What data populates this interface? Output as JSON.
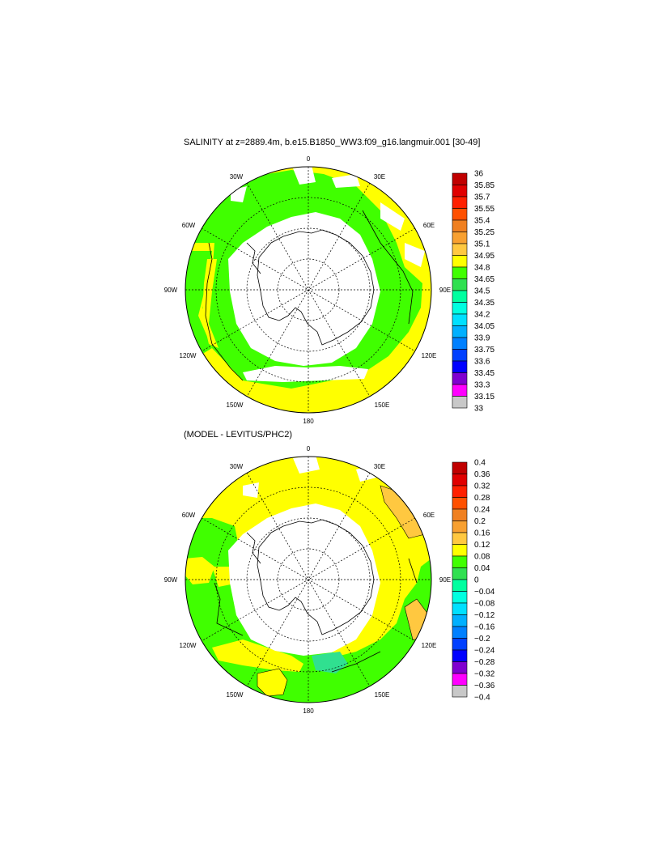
{
  "panels": [
    {
      "title": "SALINITY at z=2889.4m, b.e15.B1850_WW3.f09_g16.langmuir.001 [30-49]",
      "lon_labels": [
        "0",
        "30E",
        "60E",
        "90E",
        "120E",
        "150E",
        "180",
        "150W",
        "120W",
        "90W",
        "60W",
        "30W"
      ],
      "colorbar": {
        "labels": [
          "36",
          "35.85",
          "35.7",
          "35.55",
          "35.4",
          "35.25",
          "35.1",
          "34.95",
          "34.8",
          "34.65",
          "34.5",
          "34.35",
          "34.2",
          "34.05",
          "33.9",
          "33.75",
          "33.6",
          "33.45",
          "33.3",
          "33.15",
          "33"
        ],
        "colors": [
          "#c00000",
          "#e00000",
          "#ff2000",
          "#ff5000",
          "#f08020",
          "#f8a030",
          "#ffc840",
          "#ffff00",
          "#40ff00",
          "#30e050",
          "#00ffa0",
          "#00ffe0",
          "#00e0ff",
          "#00b0ff",
          "#0080ff",
          "#0040ff",
          "#0000ff",
          "#8000d0",
          "#ff00ff",
          "#c8c8c8",
          "#707070"
        ]
      }
    },
    {
      "title": "(MODEL - LEVITUS/PHC2)",
      "lon_labels": [
        "0",
        "30E",
        "60E",
        "90E",
        "120E",
        "150E",
        "180",
        "150W",
        "120W",
        "90W",
        "60W",
        "30W"
      ],
      "colorbar": {
        "labels": [
          "0.4",
          "0.36",
          "0.32",
          "0.28",
          "0.24",
          "0.2",
          "0.16",
          "0.12",
          "0.08",
          "0.04",
          "0",
          "−0.04",
          "−0.08",
          "−0.12",
          "−0.16",
          "−0.2",
          "−0.24",
          "−0.28",
          "−0.32",
          "−0.36",
          "−0.4"
        ],
        "colors": [
          "#c00000",
          "#e00000",
          "#ff2000",
          "#ff5000",
          "#f08020",
          "#f8a030",
          "#ffc840",
          "#ffff00",
          "#40ff00",
          "#30e050",
          "#00ffa0",
          "#00ffe0",
          "#00e0ff",
          "#00b0ff",
          "#0080ff",
          "#0040ff",
          "#0000ff",
          "#8000d0",
          "#ff00ff",
          "#c8c8c8",
          "#707070"
        ]
      }
    }
  ]
}
